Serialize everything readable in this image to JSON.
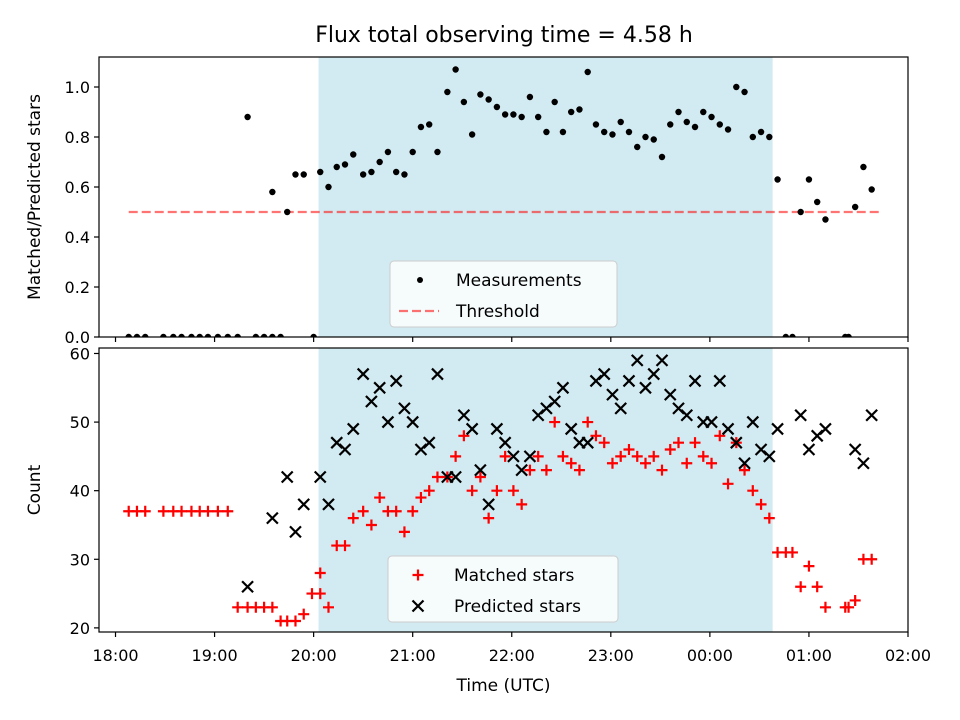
{
  "title": "Flux total observing time = 4.58 h",
  "colors": {
    "band": "#add8e6",
    "measurement": "#000000",
    "threshold": "#ff0000",
    "matched": "#ff0000",
    "predicted": "#000000"
  },
  "chart_data": [
    {
      "type": "scatter",
      "panel": "top",
      "xlabel": "",
      "ylabel": "Matched/Predicted stars",
      "xlim": [
        "17:50",
        "02:00"
      ],
      "ylim": [
        0,
        1.12
      ],
      "yticks": [
        "0.0",
        "0.2",
        "0.4",
        "0.6",
        "0.8",
        "1.0"
      ],
      "ytick_values": [
        0,
        0.2,
        0.4,
        0.6,
        0.8,
        1.0
      ],
      "shaded_interval": [
        "20:03",
        "00:38"
      ],
      "legend": {
        "position": "lower center",
        "entries": [
          "Measurements",
          "Threshold"
        ]
      },
      "threshold": {
        "name": "Threshold",
        "value": 0.5,
        "x_start": "18:08",
        "x_end": "01:43"
      },
      "series": [
        {
          "name": "Measurements",
          "marker": "dot",
          "points": [
            [
              "18:08",
              0
            ],
            [
              "18:13",
              0
            ],
            [
              "18:18",
              0
            ],
            [
              "18:29",
              0
            ],
            [
              "18:35",
              0
            ],
            [
              "18:40",
              0
            ],
            [
              "18:46",
              0
            ],
            [
              "18:51",
              0
            ],
            [
              "18:56",
              0
            ],
            [
              "19:02",
              0
            ],
            [
              "19:08",
              0
            ],
            [
              "19:14",
              0
            ],
            [
              "19:20",
              0.88
            ],
            [
              "19:25",
              0
            ],
            [
              "19:30",
              0
            ],
            [
              "19:35",
              0
            ],
            [
              "19:35",
              0.58
            ],
            [
              "19:40",
              0
            ],
            [
              "19:44",
              0.5
            ],
            [
              "19:49",
              0.65
            ],
            [
              "19:54",
              0.65
            ],
            [
              "20:00",
              0
            ],
            [
              "20:04",
              0.66
            ],
            [
              "20:09",
              0.6
            ],
            [
              "20:14",
              0.68
            ],
            [
              "20:19",
              0.69
            ],
            [
              "20:24",
              0.73
            ],
            [
              "20:30",
              0.65
            ],
            [
              "20:35",
              0.66
            ],
            [
              "20:40",
              0.7
            ],
            [
              "20:45",
              0.74
            ],
            [
              "20:50",
              0.66
            ],
            [
              "20:55",
              0.65
            ],
            [
              "21:00",
              0.74
            ],
            [
              "21:05",
              0.84
            ],
            [
              "21:10",
              0.85
            ],
            [
              "21:15",
              0.74
            ],
            [
              "21:21",
              0.98
            ],
            [
              "21:26",
              1.07
            ],
            [
              "21:31",
              0.94
            ],
            [
              "21:36",
              0.81
            ],
            [
              "21:41",
              0.97
            ],
            [
              "21:46",
              0.95
            ],
            [
              "21:51",
              0.92
            ],
            [
              "21:56",
              0.89
            ],
            [
              "22:01",
              0.89
            ],
            [
              "22:06",
              0.88
            ],
            [
              "22:11",
              0.96
            ],
            [
              "22:16",
              0.88
            ],
            [
              "22:21",
              0.82
            ],
            [
              "22:26",
              0.94
            ],
            [
              "22:31",
              0.82
            ],
            [
              "22:36",
              0.9
            ],
            [
              "22:41",
              0.91
            ],
            [
              "22:46",
              1.06
            ],
            [
              "22:51",
              0.85
            ],
            [
              "22:56",
              0.82
            ],
            [
              "23:01",
              0.81
            ],
            [
              "23:06",
              0.86
            ],
            [
              "23:11",
              0.82
            ],
            [
              "23:16",
              0.76
            ],
            [
              "23:21",
              0.8
            ],
            [
              "23:26",
              0.79
            ],
            [
              "23:31",
              0.72
            ],
            [
              "23:36",
              0.85
            ],
            [
              "23:41",
              0.9
            ],
            [
              "23:46",
              0.86
            ],
            [
              "23:51",
              0.84
            ],
            [
              "23:56",
              0.9
            ],
            [
              "00:01",
              0.88
            ],
            [
              "00:06",
              0.85
            ],
            [
              "00:11",
              0.83
            ],
            [
              "00:16",
              1.0
            ],
            [
              "00:21",
              0.98
            ],
            [
              "00:26",
              0.8
            ],
            [
              "00:31",
              0.82
            ],
            [
              "00:36",
              0.8
            ],
            [
              "00:41",
              0.63
            ],
            [
              "00:46",
              0
            ],
            [
              "00:50",
              0
            ],
            [
              "00:55",
              0.5
            ],
            [
              "01:00",
              0.63
            ],
            [
              "01:05",
              0.54
            ],
            [
              "01:10",
              0.47
            ],
            [
              "01:22",
              0
            ],
            [
              "01:24",
              0
            ],
            [
              "01:28",
              0.52
            ],
            [
              "01:33",
              0.68
            ],
            [
              "01:38",
              0.59
            ]
          ]
        }
      ]
    },
    {
      "type": "scatter",
      "panel": "bottom",
      "xlabel": "Time (UTC)",
      "ylabel": "Count",
      "xlim": [
        "17:50",
        "02:00"
      ],
      "ylim": [
        19.4,
        60.8
      ],
      "yticks": [
        "20",
        "30",
        "40",
        "50",
        "60"
      ],
      "ytick_values": [
        20,
        30,
        40,
        50,
        60
      ],
      "xticks": [
        "18:00",
        "19:00",
        "20:00",
        "21:00",
        "22:00",
        "23:00",
        "00:00",
        "01:00",
        "02:00"
      ],
      "shaded_interval": [
        "20:03",
        "00:38"
      ],
      "legend": {
        "position": "lower center",
        "entries": [
          "Matched stars",
          "Predicted stars"
        ]
      },
      "series": [
        {
          "name": "Matched stars",
          "marker": "plus",
          "points": [
            [
              "18:08",
              37
            ],
            [
              "18:13",
              37
            ],
            [
              "18:18",
              37
            ],
            [
              "18:29",
              37
            ],
            [
              "18:35",
              37
            ],
            [
              "18:40",
              37
            ],
            [
              "18:46",
              37
            ],
            [
              "18:51",
              37
            ],
            [
              "18:56",
              37
            ],
            [
              "19:02",
              37
            ],
            [
              "19:08",
              37
            ],
            [
              "19:14",
              23
            ],
            [
              "19:20",
              23
            ],
            [
              "19:25",
              23
            ],
            [
              "19:30",
              23
            ],
            [
              "19:35",
              23
            ],
            [
              "19:40",
              21
            ],
            [
              "19:44",
              21
            ],
            [
              "19:49",
              21
            ],
            [
              "19:54",
              22
            ],
            [
              "19:59",
              25
            ],
            [
              "20:04",
              25
            ],
            [
              "20:04",
              28
            ],
            [
              "20:09",
              23
            ],
            [
              "20:14",
              32
            ],
            [
              "20:19",
              32
            ],
            [
              "20:24",
              36
            ],
            [
              "20:30",
              37
            ],
            [
              "20:35",
              35
            ],
            [
              "20:40",
              39
            ],
            [
              "20:45",
              37
            ],
            [
              "20:50",
              37
            ],
            [
              "20:55",
              34
            ],
            [
              "21:00",
              37
            ],
            [
              "21:05",
              39
            ],
            [
              "21:10",
              40
            ],
            [
              "21:15",
              42
            ],
            [
              "21:21",
              42
            ],
            [
              "21:26",
              45
            ],
            [
              "21:31",
              48
            ],
            [
              "21:36",
              40
            ],
            [
              "21:41",
              42
            ],
            [
              "21:46",
              36
            ],
            [
              "21:51",
              40
            ],
            [
              "21:56",
              45
            ],
            [
              "22:01",
              40
            ],
            [
              "22:06",
              38
            ],
            [
              "22:11",
              43
            ],
            [
              "22:16",
              45
            ],
            [
              "22:21",
              43
            ],
            [
              "22:26",
              50
            ],
            [
              "22:31",
              45
            ],
            [
              "22:36",
              44
            ],
            [
              "22:41",
              43
            ],
            [
              "22:46",
              50
            ],
            [
              "22:51",
              48
            ],
            [
              "22:56",
              47
            ],
            [
              "23:01",
              44
            ],
            [
              "23:06",
              45
            ],
            [
              "23:11",
              46
            ],
            [
              "23:16",
              45
            ],
            [
              "23:21",
              44
            ],
            [
              "23:26",
              45
            ],
            [
              "23:31",
              43
            ],
            [
              "23:36",
              46
            ],
            [
              "23:41",
              47
            ],
            [
              "23:46",
              44
            ],
            [
              "23:51",
              47
            ],
            [
              "23:56",
              45
            ],
            [
              "00:01",
              44
            ],
            [
              "00:06",
              48
            ],
            [
              "00:11",
              41
            ],
            [
              "00:16",
              47
            ],
            [
              "00:21",
              43
            ],
            [
              "00:26",
              40
            ],
            [
              "00:31",
              38
            ],
            [
              "00:36",
              36
            ],
            [
              "00:41",
              31
            ],
            [
              "00:46",
              31
            ],
            [
              "00:50",
              31
            ],
            [
              "00:55",
              26
            ],
            [
              "01:00",
              29
            ],
            [
              "01:05",
              26
            ],
            [
              "01:10",
              23
            ],
            [
              "01:22",
              23
            ],
            [
              "01:24",
              23
            ],
            [
              "01:28",
              24
            ],
            [
              "01:33",
              30
            ],
            [
              "01:38",
              30
            ]
          ]
        },
        {
          "name": "Predicted stars",
          "marker": "x",
          "points": [
            [
              "19:20",
              26
            ],
            [
              "19:35",
              36
            ],
            [
              "19:44",
              42
            ],
            [
              "19:49",
              34
            ],
            [
              "19:54",
              38
            ],
            [
              "20:04",
              42
            ],
            [
              "20:09",
              38
            ],
            [
              "20:14",
              47
            ],
            [
              "20:19",
              46
            ],
            [
              "20:24",
              49
            ],
            [
              "20:30",
              57
            ],
            [
              "20:35",
              53
            ],
            [
              "20:40",
              55
            ],
            [
              "20:45",
              50
            ],
            [
              "20:50",
              56
            ],
            [
              "20:55",
              52
            ],
            [
              "21:00",
              50
            ],
            [
              "21:05",
              46
            ],
            [
              "21:10",
              47
            ],
            [
              "21:15",
              57
            ],
            [
              "21:21",
              42
            ],
            [
              "21:26",
              42
            ],
            [
              "21:31",
              51
            ],
            [
              "21:36",
              49
            ],
            [
              "21:41",
              43
            ],
            [
              "21:46",
              38
            ],
            [
              "21:51",
              49
            ],
            [
              "21:56",
              47
            ],
            [
              "22:01",
              45
            ],
            [
              "22:06",
              43
            ],
            [
              "22:11",
              45
            ],
            [
              "22:16",
              51
            ],
            [
              "22:21",
              52
            ],
            [
              "22:26",
              53
            ],
            [
              "22:31",
              55
            ],
            [
              "22:36",
              49
            ],
            [
              "22:41",
              47
            ],
            [
              "22:46",
              47
            ],
            [
              "22:51",
              56
            ],
            [
              "22:56",
              57
            ],
            [
              "23:01",
              54
            ],
            [
              "23:06",
              52
            ],
            [
              "23:11",
              56
            ],
            [
              "23:16",
              59
            ],
            [
              "23:21",
              55
            ],
            [
              "23:26",
              57
            ],
            [
              "23:31",
              59
            ],
            [
              "23:36",
              54
            ],
            [
              "23:41",
              52
            ],
            [
              "23:46",
              51
            ],
            [
              "23:51",
              56
            ],
            [
              "23:56",
              50
            ],
            [
              "00:01",
              50
            ],
            [
              "00:06",
              56
            ],
            [
              "00:11",
              49
            ],
            [
              "00:16",
              47
            ],
            [
              "00:21",
              44
            ],
            [
              "00:26",
              50
            ],
            [
              "00:31",
              46
            ],
            [
              "00:36",
              45
            ],
            [
              "00:41",
              49
            ],
            [
              "00:55",
              51
            ],
            [
              "01:00",
              46
            ],
            [
              "01:05",
              48
            ],
            [
              "01:10",
              49
            ],
            [
              "01:28",
              46
            ],
            [
              "01:33",
              44
            ],
            [
              "01:38",
              51
            ]
          ]
        }
      ]
    }
  ]
}
